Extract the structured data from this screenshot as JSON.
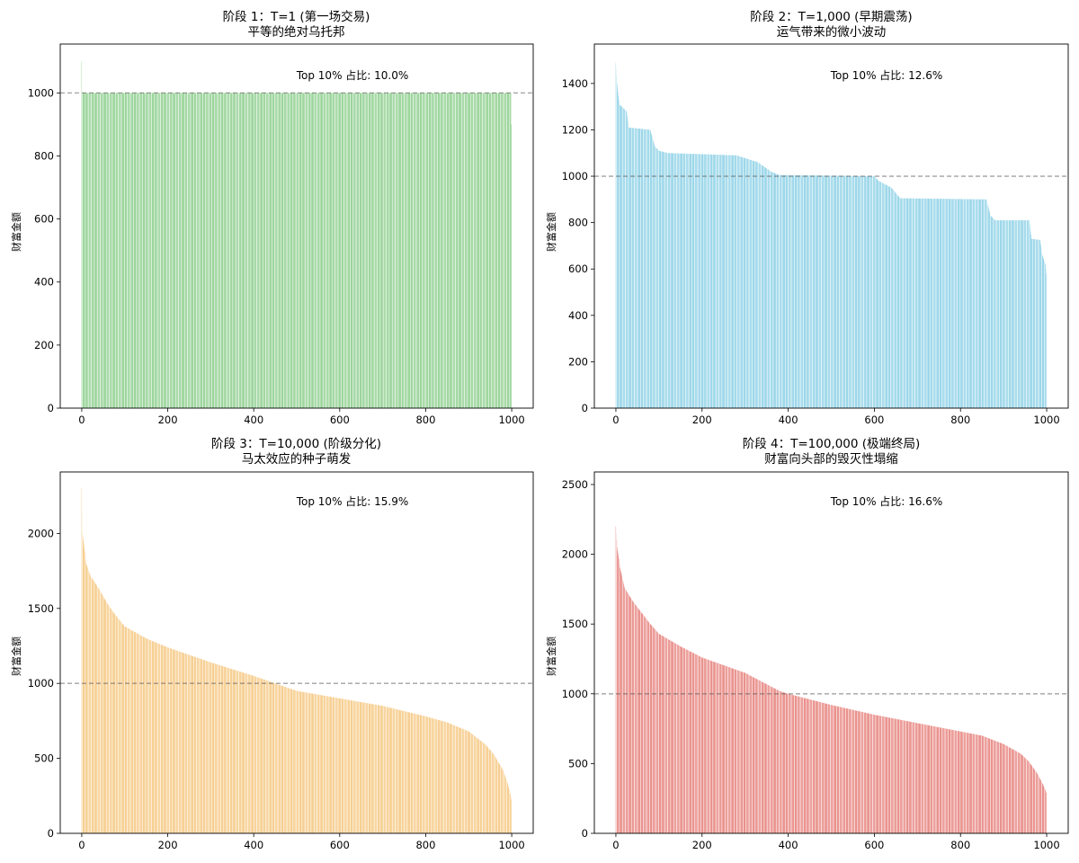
{
  "figure": {
    "description": "Wealth distribution across 1000 agents at four simulation stages (agents sorted by wealth, descending)"
  },
  "chart_data": [
    {
      "type": "bar",
      "id": "stage1",
      "title_line1": "阶段 1：T=1 (第一场交易)",
      "title_line2": "平等的绝对乌托邦",
      "xlabel": "",
      "ylabel": "财富金额",
      "color": "#7ec87e",
      "n_agents": 1000,
      "xlim": [
        -50,
        1050
      ],
      "ylim": [
        0,
        1155
      ],
      "xticks": [
        0,
        200,
        400,
        600,
        800,
        1000
      ],
      "yticks": [
        0,
        200,
        400,
        600,
        800,
        1000
      ],
      "reference_line": 1000,
      "annotation": "Top 10% 占比: 10.0%",
      "profile": {
        "note": "sorted wealth by rank (rank -> wealth), piecewise linear",
        "points": [
          [
            0,
            1100
          ],
          [
            1,
            1000
          ],
          [
            998,
            1000
          ],
          [
            999,
            900
          ]
        ]
      }
    },
    {
      "type": "bar",
      "id": "stage2",
      "title_line1": "阶段 2：T=1,000 (早期震荡)",
      "title_line2": "运气带来的微小波动",
      "xlabel": "",
      "ylabel": "财富金额",
      "color": "#7ecbe3",
      "n_agents": 1000,
      "xlim": [
        -50,
        1050
      ],
      "ylim": [
        0,
        1570
      ],
      "xticks": [
        0,
        200,
        400,
        600,
        800,
        1000
      ],
      "yticks": [
        0,
        200,
        400,
        600,
        800,
        1000,
        1200,
        1400
      ],
      "reference_line": 1000,
      "annotation": "Top 10% 占比: 12.6%",
      "profile": {
        "note": "sorted wealth by rank (rank -> wealth), stepped plateaus",
        "points": [
          [
            0,
            1490
          ],
          [
            3,
            1400
          ],
          [
            8,
            1310
          ],
          [
            25,
            1280
          ],
          [
            30,
            1210
          ],
          [
            80,
            1200
          ],
          [
            90,
            1130
          ],
          [
            100,
            1110
          ],
          [
            120,
            1100
          ],
          [
            280,
            1090
          ],
          [
            330,
            1060
          ],
          [
            360,
            1020
          ],
          [
            380,
            1005
          ],
          [
            600,
            1000
          ],
          [
            610,
            980
          ],
          [
            640,
            950
          ],
          [
            660,
            905
          ],
          [
            860,
            900
          ],
          [
            870,
            830
          ],
          [
            880,
            810
          ],
          [
            960,
            810
          ],
          [
            965,
            730
          ],
          [
            985,
            725
          ],
          [
            990,
            660
          ],
          [
            997,
            620
          ],
          [
            999,
            580
          ]
        ]
      }
    },
    {
      "type": "bar",
      "id": "stage3",
      "title_line1": "阶段 3：T=10,000 (阶级分化)",
      "title_line2": "马太效应的种子萌发",
      "xlabel": "",
      "ylabel": "财富金额",
      "color": "#f4c070",
      "n_agents": 1000,
      "xlim": [
        -50,
        1050
      ],
      "ylim": [
        0,
        2410
      ],
      "xticks": [
        0,
        200,
        400,
        600,
        800,
        1000
      ],
      "yticks": [
        0,
        500,
        1000,
        1500,
        2000
      ],
      "reference_line": 1000,
      "annotation": "Top 10% 占比: 15.9%",
      "profile": {
        "note": "sorted wealth by rank (rank -> wealth), smooth decline",
        "points": [
          [
            0,
            2300
          ],
          [
            2,
            2000
          ],
          [
            5,
            1930
          ],
          [
            10,
            1800
          ],
          [
            20,
            1720
          ],
          [
            40,
            1630
          ],
          [
            60,
            1530
          ],
          [
            80,
            1450
          ],
          [
            100,
            1380
          ],
          [
            150,
            1300
          ],
          [
            200,
            1240
          ],
          [
            300,
            1140
          ],
          [
            400,
            1050
          ],
          [
            440,
            1010
          ],
          [
            500,
            950
          ],
          [
            600,
            900
          ],
          [
            700,
            850
          ],
          [
            800,
            780
          ],
          [
            850,
            740
          ],
          [
            900,
            680
          ],
          [
            940,
            590
          ],
          [
            960,
            520
          ],
          [
            980,
            420
          ],
          [
            990,
            340
          ],
          [
            997,
            260
          ],
          [
            999,
            220
          ]
        ]
      }
    },
    {
      "type": "bar",
      "id": "stage4",
      "title_line1": "阶段 4：T=100,000 (极端终局)",
      "title_line2": "财富向头部的毁灭性塌缩",
      "xlabel": "",
      "ylabel": "财富金额",
      "color": "#e3706a",
      "n_agents": 1000,
      "xlim": [
        -50,
        1050
      ],
      "ylim": [
        0,
        2590
      ],
      "xticks": [
        0,
        200,
        400,
        600,
        800,
        1000
      ],
      "yticks": [
        0,
        500,
        1000,
        1500,
        2000,
        2500
      ],
      "reference_line": 1000,
      "annotation": "Top 10% 占比: 16.6%",
      "profile": {
        "note": "sorted wealth by rank (rank -> wealth), smooth decline",
        "points": [
          [
            0,
            2200
          ],
          [
            3,
            2050
          ],
          [
            6,
            1990
          ],
          [
            10,
            1900
          ],
          [
            20,
            1760
          ],
          [
            40,
            1660
          ],
          [
            60,
            1580
          ],
          [
            80,
            1500
          ],
          [
            100,
            1430
          ],
          [
            150,
            1340
          ],
          [
            200,
            1260
          ],
          [
            300,
            1150
          ],
          [
            380,
            1020
          ],
          [
            400,
            1000
          ],
          [
            500,
            920
          ],
          [
            600,
            850
          ],
          [
            700,
            790
          ],
          [
            800,
            730
          ],
          [
            850,
            700
          ],
          [
            900,
            640
          ],
          [
            940,
            570
          ],
          [
            960,
            510
          ],
          [
            980,
            420
          ],
          [
            990,
            360
          ],
          [
            997,
            310
          ],
          [
            999,
            290
          ]
        ]
      }
    }
  ]
}
